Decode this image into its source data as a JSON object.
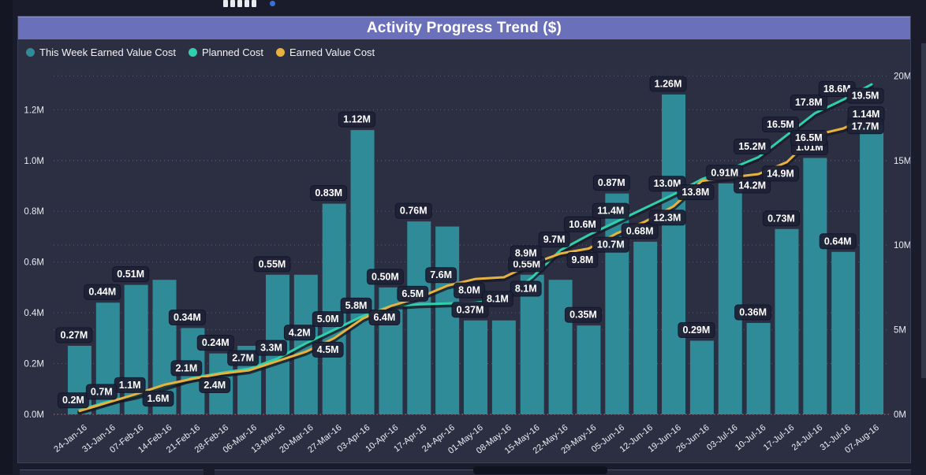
{
  "panel": {
    "title": "Activity Progress Trend ($)",
    "title_bar_color": "#6b70ba",
    "legend": [
      {
        "label": "This Week Earned Value Cost",
        "color": "#2f8b97"
      },
      {
        "label": "Planned Cost",
        "color": "#2fd0ac"
      },
      {
        "label": "Earned Value Cost",
        "color": "#e8b23e"
      }
    ]
  },
  "chart_data": {
    "type": "bar",
    "subtype": "combo-bar-line",
    "title": "Activity Progress Trend ($)",
    "grid": true,
    "legend_position": "top-left",
    "categories": [
      "24-Jan-16",
      "31-Jan-16",
      "07-Feb-16",
      "14-Feb-16",
      "21-Feb-16",
      "28-Feb-16",
      "06-Mar-16",
      "13-Mar-16",
      "20-Mar-16",
      "27-Mar-16",
      "03-Apr-16",
      "10-Apr-16",
      "17-Apr-16",
      "24-Apr-16",
      "01-May-16",
      "08-May-16",
      "15-May-16",
      "22-May-16",
      "29-May-16",
      "05-Jun-16",
      "12-Jun-16",
      "19-Jun-16",
      "26-Jun-16",
      "03-Jul-16",
      "10-Jul-16",
      "17-Jul-16",
      "24-Jul-16",
      "31-Jul-16",
      "07-Aug-16"
    ],
    "left_axis": {
      "title": "",
      "ticks": [
        "0.0M",
        "0.2M",
        "0.4M",
        "0.6M",
        "0.8M",
        "1.0M",
        "1.2M"
      ],
      "values": [
        0,
        0.2,
        0.4,
        0.6,
        0.8,
        1.0,
        1.2
      ],
      "max": 1.35
    },
    "right_axis": {
      "title": "",
      "ticks": [
        "0M",
        "5M",
        "10M",
        "15M",
        "20M"
      ],
      "values": [
        0,
        5,
        10,
        15,
        20
      ],
      "max": 20.25
    },
    "series": [
      {
        "name": "This Week Earned Value Cost",
        "type": "bar",
        "axis": "left",
        "color": "#2f8b97",
        "values": [
          0.27,
          0.44,
          0.51,
          0.53,
          0.34,
          0.24,
          0.27,
          0.55,
          0.55,
          0.83,
          1.12,
          0.5,
          0.76,
          0.74,
          0.37,
          0.37,
          0.55,
          0.53,
          0.35,
          0.87,
          0.68,
          1.26,
          0.29,
          0.91,
          0.36,
          0.73,
          1.01,
          0.64,
          1.14
        ],
        "labels": {
          "0": "0.27M",
          "1": "0.44M",
          "2": "0.51M",
          "4": "0.34M",
          "5": "0.24M",
          "7": "0.55M",
          "9": "0.83M",
          "10": "1.12M",
          "11": "0.50M",
          "12": "0.76M",
          "14": "0.37M",
          "16": "0.55M",
          "18": "0.35M",
          "19": "0.87M",
          "20": "0.68M",
          "21": "1.26M",
          "22": "0.29M",
          "23": "0.91M",
          "24": "0.36M",
          "25": "0.73M",
          "26": "1.01M",
          "27": "0.64M",
          "28": "1.14M"
        }
      },
      {
        "name": "Planned Cost",
        "type": "line",
        "axis": "right",
        "color": "#2fd0ac",
        "values": [
          0.25,
          0.75,
          1.1,
          1.6,
          2.15,
          2.45,
          2.7,
          3.3,
          4.2,
          5.0,
          5.8,
          6.4,
          6.5,
          6.55,
          6.6,
          6.8,
          8.1,
          9.7,
          10.6,
          11.4,
          12.2,
          13.0,
          13.9,
          14.5,
          15.2,
          16.5,
          17.8,
          18.6,
          19.5
        ],
        "labels": {
          "2": "1.1M",
          "3": "1.6M",
          "6": "2.7M",
          "7": "3.3M",
          "8": "4.2M",
          "9": "5.0M",
          "10": "5.8M",
          "12": "6.5M",
          "16": "8.1M",
          "17": "9.7M",
          "18": "10.6M",
          "19": "11.4M",
          "21": "13.0M",
          "24": "15.2M",
          "25": "16.5M",
          "26": "17.8M",
          "27": "18.6M",
          "28": "19.5M"
        }
      },
      {
        "name": "Earned Value Cost",
        "type": "line",
        "axis": "right",
        "color": "#e8b23e",
        "values": [
          0.2,
          0.7,
          1.2,
          1.75,
          2.1,
          2.4,
          2.6,
          3.15,
          3.7,
          4.5,
          5.65,
          6.4,
          6.9,
          7.6,
          8.0,
          8.1,
          8.9,
          9.5,
          9.8,
          10.7,
          11.4,
          12.3,
          13.8,
          14.0,
          14.2,
          14.9,
          16.5,
          16.9,
          17.7
        ],
        "labels": {
          "0": "0.2M",
          "1": "0.7M",
          "4": "2.1M",
          "5": "2.4M",
          "9": "4.5M",
          "11": "6.4M",
          "13": "7.6M",
          "14": "8.0M",
          "15": "8.1M",
          "16": "8.9M",
          "18": "9.8M",
          "19": "10.7M",
          "21": "12.3M",
          "22": "13.8M",
          "24": "14.2M",
          "25": "14.9M",
          "26": "16.5M",
          "28": "17.7M"
        }
      }
    ]
  }
}
